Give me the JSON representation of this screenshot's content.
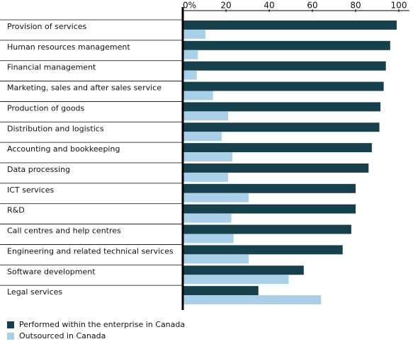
{
  "chart_data": {
    "type": "bar",
    "orientation": "horizontal",
    "categories": [
      "Provision of services",
      "Human resources management",
      "Financial management",
      "Marketing, sales and after sales service",
      "Production of goods",
      "Distribution and logistics",
      "Accounting and bookkeeping",
      "Data processing",
      "ICT services",
      "R&D",
      "Call centres and help centres",
      "Engineering and related technical services",
      "Software development",
      "Legal services"
    ],
    "series": [
      {
        "name": "Performed within the enterprise in Canada",
        "color": "#17404d",
        "values": [
          99,
          96,
          94,
          93,
          91.5,
          91,
          87.5,
          86,
          80,
          80,
          78,
          74,
          56,
          35
        ]
      },
      {
        "name": "Outsourced in Canada",
        "color": "#a9d0e8",
        "values": [
          10.5,
          7,
          6.5,
          14,
          21,
          18,
          23,
          21,
          30.5,
          22.5,
          23.5,
          30.5,
          49,
          64
        ]
      }
    ],
    "xlim": [
      0,
      100
    ],
    "xticks": [
      {
        "value": 0,
        "label": "0%"
      },
      20,
      40,
      60,
      80,
      100
    ],
    "legend": "bottom-left"
  }
}
